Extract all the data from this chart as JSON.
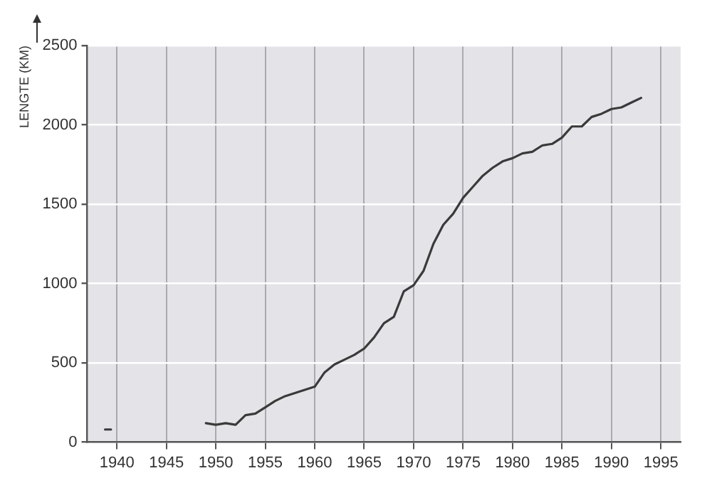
{
  "chart_data": {
    "type": "line",
    "ylabel": "LENGTE (KM)",
    "xlim": [
      1937,
      1997
    ],
    "xticks": [
      1940,
      1945,
      1950,
      1955,
      1960,
      1965,
      1970,
      1975,
      1980,
      1985,
      1990,
      1995
    ],
    "ylim": [
      0,
      2500
    ],
    "yticks": [
      0,
      500,
      1000,
      1500,
      2000,
      2500
    ],
    "grid": true,
    "legend": false,
    "marker": "none",
    "line_style": "solid",
    "series": [
      {
        "color": "#3a3a3a",
        "x": [
          1938.8,
          1939.4,
          1944,
          1949,
          1950,
          1951,
          1952,
          1953,
          1954,
          1955,
          1956,
          1957,
          1958,
          1959,
          1960,
          1961,
          1962,
          1963,
          1964,
          1965,
          1966,
          1967,
          1968,
          1969,
          1970,
          1971,
          1972,
          1973,
          1974,
          1975,
          1976,
          1977,
          1978,
          1979,
          1980,
          1981,
          1982,
          1983,
          1984,
          1985,
          1986,
          1987,
          1988,
          1989,
          1990,
          1991,
          1992,
          1993
        ],
        "values": [
          80,
          80,
          null,
          120,
          110,
          120,
          110,
          170,
          180,
          220,
          260,
          290,
          310,
          330,
          350,
          440,
          490,
          520,
          550,
          590,
          660,
          750,
          790,
          950,
          990,
          1080,
          1250,
          1370,
          1440,
          1540,
          1610,
          1680,
          1730,
          1770,
          1790,
          1820,
          1830,
          1870,
          1880,
          1920,
          1990,
          1990,
          2050,
          2070,
          2100,
          2110,
          2140,
          2170
        ]
      }
    ]
  }
}
